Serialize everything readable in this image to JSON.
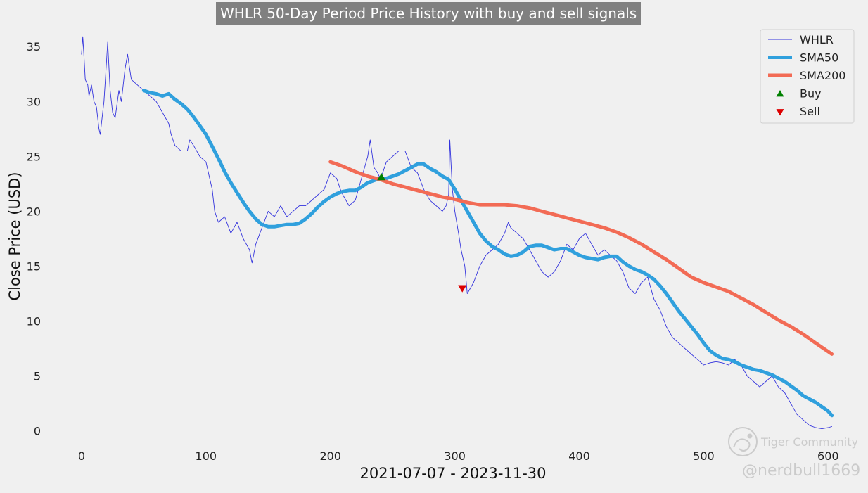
{
  "chart_data": {
    "type": "line",
    "title": "WHLR 50-Day Period Price History with buy and sell signals",
    "xlabel": "2021-07-07 - 2023-11-30",
    "ylabel": "Close Price (USD)",
    "xlim": [
      -9,
      623
    ],
    "ylim": [
      -1.3,
      37
    ],
    "xticks": [
      0,
      100,
      200,
      300,
      400,
      500,
      600
    ],
    "yticks": [
      0,
      5,
      10,
      15,
      20,
      25,
      30,
      35
    ],
    "grid": false,
    "legend_position": "top-right",
    "series": [
      {
        "name": "WHLR",
        "style": "thin-line",
        "color": "#3333dd",
        "x": [
          0,
          1,
          2,
          3,
          5,
          6,
          8,
          10,
          12,
          14,
          15,
          17,
          18,
          20,
          21,
          23,
          25,
          27,
          30,
          32,
          35,
          37,
          38,
          40,
          45,
          50,
          55,
          60,
          65,
          70,
          72,
          75,
          80,
          85,
          87,
          90,
          95,
          100,
          103,
          105,
          107,
          110,
          115,
          120,
          125,
          130,
          135,
          137,
          140,
          145,
          150,
          155,
          160,
          165,
          170,
          175,
          180,
          185,
          190,
          195,
          200,
          205,
          208,
          210,
          215,
          220,
          225,
          230,
          232,
          235,
          238,
          240,
          242,
          245,
          250,
          255,
          260,
          265,
          270,
          275,
          280,
          285,
          290,
          293,
          295,
          296,
          298,
          300,
          303,
          305,
          308,
          310,
          315,
          320,
          325,
          330,
          335,
          340,
          343,
          345,
          350,
          355,
          360,
          365,
          370,
          375,
          380,
          385,
          390,
          395,
          400,
          405,
          410,
          415,
          420,
          425,
          430,
          435,
          440,
          445,
          450,
          455,
          460,
          465,
          470,
          475,
          480,
          485,
          490,
          495,
          500,
          505,
          510,
          515,
          520,
          525,
          530,
          535,
          540,
          545,
          550,
          555,
          560,
          565,
          570,
          575,
          580,
          585,
          590,
          595,
          600,
          603
        ],
        "y": [
          34.3,
          35.9,
          34.0,
          32.0,
          31.5,
          30.5,
          31.5,
          30.0,
          29.5,
          27.5,
          27.0,
          29.0,
          30.0,
          33.5,
          35.4,
          31.0,
          29.0,
          28.5,
          31.0,
          30.0,
          33.0,
          34.3,
          33.5,
          32.0,
          31.5,
          31.0,
          30.5,
          30.0,
          29.0,
          28.0,
          27.0,
          26.0,
          25.5,
          25.5,
          26.5,
          26.0,
          25.0,
          24.5,
          23.0,
          22.0,
          20.0,
          19.0,
          19.5,
          18.0,
          19.0,
          17.5,
          16.5,
          15.3,
          17.0,
          18.5,
          20.0,
          19.5,
          20.5,
          19.5,
          20.0,
          20.5,
          20.5,
          21.0,
          21.5,
          22.0,
          23.5,
          23.0,
          22.0,
          21.5,
          20.5,
          21.0,
          23.0,
          25.0,
          26.5,
          24.0,
          23.5,
          23.0,
          23.5,
          24.5,
          25.0,
          25.5,
          25.5,
          24.0,
          23.5,
          22.0,
          21.0,
          20.5,
          20.0,
          20.5,
          21.5,
          26.5,
          22.0,
          20.0,
          18.0,
          16.5,
          15.0,
          12.5,
          13.5,
          15.0,
          16.0,
          16.5,
          17.0,
          18.0,
          19.0,
          18.5,
          18.0,
          17.5,
          16.5,
          15.5,
          14.5,
          14.0,
          14.5,
          15.5,
          17.0,
          16.5,
          17.5,
          18.0,
          17.0,
          16.0,
          16.5,
          16.0,
          15.5,
          14.5,
          13.0,
          12.5,
          13.5,
          14.0,
          12.0,
          11.0,
          9.5,
          8.5,
          8.0,
          7.5,
          7.0,
          6.5,
          6.0,
          6.2,
          6.3,
          6.2,
          6.0,
          6.5,
          6.0,
          5.0,
          4.5,
          4.0,
          4.5,
          5.0,
          4.0,
          3.5,
          2.5,
          1.5,
          1.0,
          0.5,
          0.3,
          0.2,
          0.3,
          0.4
        ]
      },
      {
        "name": "SMA50",
        "style": "thick-line",
        "color": "#30a0dd",
        "x": [
          50,
          55,
          60,
          65,
          70,
          75,
          80,
          85,
          90,
          95,
          100,
          105,
          110,
          115,
          120,
          125,
          130,
          135,
          140,
          145,
          150,
          155,
          160,
          165,
          170,
          175,
          180,
          185,
          190,
          195,
          200,
          205,
          210,
          215,
          220,
          225,
          230,
          235,
          240,
          245,
          250,
          255,
          260,
          265,
          270,
          275,
          280,
          285,
          290,
          295,
          300,
          305,
          310,
          315,
          320,
          325,
          330,
          335,
          340,
          345,
          350,
          355,
          360,
          365,
          370,
          375,
          380,
          385,
          390,
          395,
          400,
          405,
          410,
          415,
          420,
          425,
          430,
          435,
          440,
          445,
          450,
          455,
          460,
          465,
          470,
          475,
          480,
          485,
          490,
          495,
          500,
          505,
          510,
          515,
          520,
          525,
          530,
          535,
          540,
          545,
          550,
          555,
          560,
          565,
          570,
          575,
          580,
          585,
          590,
          595,
          600,
          603
        ],
        "y": [
          31.0,
          30.8,
          30.7,
          30.5,
          30.7,
          30.2,
          29.8,
          29.3,
          28.6,
          27.8,
          27.0,
          25.9,
          24.8,
          23.6,
          22.6,
          21.7,
          20.8,
          20.0,
          19.3,
          18.8,
          18.6,
          18.6,
          18.7,
          18.8,
          18.8,
          18.9,
          19.3,
          19.8,
          20.4,
          20.9,
          21.3,
          21.6,
          21.8,
          21.9,
          21.9,
          22.2,
          22.6,
          22.8,
          23.0,
          23.0,
          23.2,
          23.4,
          23.7,
          24.0,
          24.3,
          24.3,
          23.9,
          23.6,
          23.2,
          22.9,
          22.0,
          21.0,
          20.0,
          19.0,
          18.0,
          17.3,
          16.8,
          16.5,
          16.1,
          15.9,
          16.0,
          16.3,
          16.8,
          16.9,
          16.9,
          16.7,
          16.5,
          16.6,
          16.6,
          16.3,
          16.0,
          15.8,
          15.7,
          15.6,
          15.8,
          15.9,
          15.9,
          15.4,
          15.0,
          14.7,
          14.5,
          14.2,
          13.8,
          13.2,
          12.5,
          11.7,
          10.9,
          10.2,
          9.5,
          8.8,
          8.0,
          7.3,
          6.9,
          6.6,
          6.5,
          6.3,
          6.0,
          5.8,
          5.6,
          5.5,
          5.3,
          5.1,
          4.8,
          4.5,
          4.1,
          3.7,
          3.2,
          2.9,
          2.6,
          2.2,
          1.8,
          1.4
        ]
      },
      {
        "name": "SMA200",
        "style": "thick-line",
        "color": "#f26b55",
        "x": [
          200,
          210,
          220,
          230,
          240,
          250,
          260,
          270,
          280,
          290,
          300,
          310,
          320,
          330,
          340,
          350,
          360,
          370,
          380,
          390,
          400,
          410,
          420,
          430,
          440,
          450,
          460,
          470,
          480,
          490,
          500,
          510,
          520,
          530,
          540,
          550,
          560,
          570,
          580,
          590,
          603
        ],
        "y": [
          24.5,
          24.1,
          23.6,
          23.2,
          22.9,
          22.5,
          22.2,
          21.9,
          21.6,
          21.3,
          21.1,
          20.8,
          20.6,
          20.6,
          20.6,
          20.5,
          20.3,
          20.0,
          19.7,
          19.4,
          19.1,
          18.8,
          18.5,
          18.1,
          17.6,
          17.0,
          16.3,
          15.6,
          14.8,
          14.0,
          13.5,
          13.1,
          12.7,
          12.1,
          11.5,
          10.8,
          10.1,
          9.5,
          8.8,
          8.0,
          7.0
        ]
      }
    ],
    "signals": [
      {
        "name": "Buy",
        "marker": "triangle-up",
        "color": "#008000",
        "x": 241,
        "y": 23.1
      },
      {
        "name": "Sell",
        "marker": "triangle-down",
        "color": "#dd0000",
        "x": 306,
        "y": 13.0
      }
    ],
    "legend": [
      {
        "label": "WHLR",
        "kind": "thin-line",
        "color": "#3333dd"
      },
      {
        "label": "SMA50",
        "kind": "thick-line",
        "color": "#30a0dd"
      },
      {
        "label": "SMA200",
        "kind": "thick-line",
        "color": "#f26b55"
      },
      {
        "label": "Buy",
        "kind": "triangle-up",
        "color": "#008000"
      },
      {
        "label": "Sell",
        "kind": "triangle-down",
        "color": "#dd0000"
      }
    ]
  },
  "watermark": {
    "brand": "Tiger Community",
    "handle": "@nerdbull1669",
    "icon": "tiger-community-logo-icon"
  }
}
